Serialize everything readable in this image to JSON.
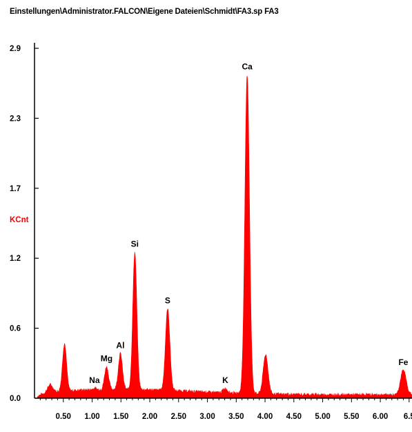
{
  "chart_data": {
    "type": "area",
    "title": "Einstellungen\\Administrator.FALCON\\Eigene Dateien\\Schmidt\\FA3.sp FA3",
    "xlabel": "",
    "ylabel": "KCnt",
    "xlim": [
      0.0,
      6.55
    ],
    "ylim": [
      0.0,
      2.9
    ],
    "x_ticks": [
      "0.50",
      "1.00",
      "1.50",
      "2.00",
      "2.50",
      "3.00",
      "3.50",
      "4.00",
      "4.50",
      "5.00",
      "5.50",
      "6.00",
      "6.5"
    ],
    "x_tick_values": [
      0.5,
      1.0,
      1.5,
      2.0,
      2.5,
      3.0,
      3.5,
      4.0,
      4.5,
      5.0,
      5.5,
      6.0,
      6.5
    ],
    "y_ticks": [
      "0.0",
      "0.6",
      "1.2",
      "1.7",
      "2.3",
      "2.9"
    ],
    "y_tick_values": [
      0.0,
      0.58,
      1.16,
      1.74,
      2.32,
      2.9
    ],
    "fill_color": "#ff0000",
    "background_level": 0.05,
    "peaks": [
      {
        "x": 0.27,
        "y": 0.11,
        "w": 0.045,
        "label": ""
      },
      {
        "x": 0.52,
        "y": 0.45,
        "w": 0.035,
        "label": ""
      },
      {
        "x": 1.04,
        "y": 0.08,
        "w": 0.035,
        "label": "Na"
      },
      {
        "x": 1.25,
        "y": 0.26,
        "w": 0.035,
        "label": "Mg"
      },
      {
        "x": 1.49,
        "y": 0.37,
        "w": 0.035,
        "label": "Al"
      },
      {
        "x": 1.74,
        "y": 1.21,
        "w": 0.035,
        "label": "Si"
      },
      {
        "x": 2.31,
        "y": 0.74,
        "w": 0.038,
        "label": "S"
      },
      {
        "x": 3.31,
        "y": 0.08,
        "w": 0.04,
        "label": "K"
      },
      {
        "x": 3.69,
        "y": 2.68,
        "w": 0.04,
        "label": "Ca"
      },
      {
        "x": 4.01,
        "y": 0.36,
        "w": 0.042,
        "label": ""
      },
      {
        "x": 6.4,
        "y": 0.23,
        "w": 0.05,
        "label": "Fe"
      }
    ]
  }
}
